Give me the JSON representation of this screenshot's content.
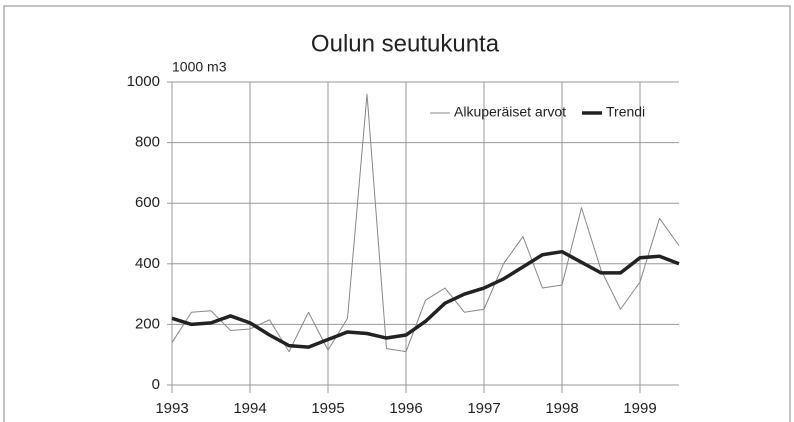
{
  "chart_data": {
    "type": "line",
    "title": "Oulun seutukunta",
    "y_axis_label": "1000 m3",
    "x": [
      1993,
      1993.25,
      1993.5,
      1993.75,
      1994,
      1994.25,
      1994.5,
      1994.75,
      1995,
      1995.25,
      1995.5,
      1995.75,
      1996,
      1996.25,
      1996.5,
      1996.75,
      1997,
      1997.25,
      1997.5,
      1997.75,
      1998,
      1998.25,
      1998.5,
      1998.75,
      1999,
      1999.25,
      1999.5
    ],
    "series": [
      {
        "name": "Alkuperäiset arvot",
        "color": "#888888",
        "values": [
          140,
          240,
          245,
          180,
          185,
          215,
          110,
          240,
          115,
          220,
          960,
          120,
          110,
          280,
          320,
          240,
          250,
          400,
          490,
          320,
          330,
          585,
          380,
          250,
          340,
          550,
          460
        ]
      },
      {
        "name": "Trendi",
        "color": "#222222",
        "values": [
          220,
          200,
          205,
          228,
          205,
          165,
          130,
          125,
          150,
          175,
          170,
          155,
          165,
          210,
          270,
          300,
          320,
          350,
          390,
          430,
          440,
          405,
          370,
          370,
          420,
          425,
          400
        ]
      }
    ],
    "xlim": [
      1993,
      1999.5
    ],
    "xticks": [
      1993,
      1994,
      1995,
      1996,
      1997,
      1998,
      1999
    ],
    "ylim": [
      0,
      1000
    ],
    "yticks": [
      0,
      200,
      400,
      600,
      800,
      1000
    ],
    "grid": true,
    "legend": "top-right"
  }
}
